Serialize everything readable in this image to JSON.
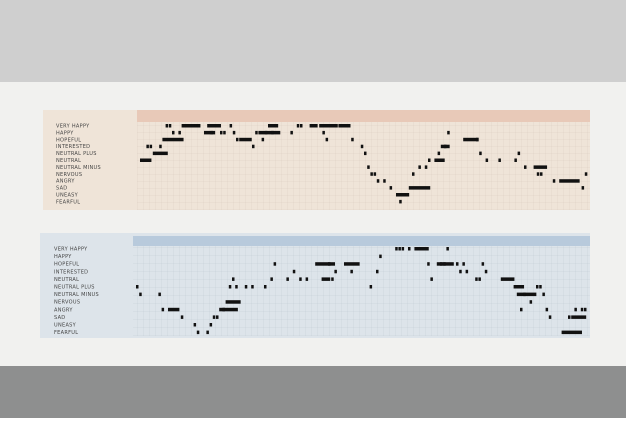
{
  "panels": [
    {
      "labels": [
        "VERY HAPPY",
        "HAPPY",
        "HOPEFUL",
        "INTERESTED",
        "NEUTRAL PLUS",
        "NEUTRAL",
        "NEUTRAL MINUS",
        "NERVOUS",
        "ANGRY",
        "SAD",
        "UNEASY",
        "FEARFUL"
      ]
    },
    {
      "labels": [
        "VERY HAPPY",
        "HAPPY",
        "HOPEFUL",
        "INTERESTED",
        "NEUTRAL",
        "NEUTRAL PLUS",
        "NEUTRAL MINUS",
        "NERVOUS",
        "ANGRY",
        "SAD",
        "UNEASY",
        "FEARFUL"
      ]
    }
  ]
}
